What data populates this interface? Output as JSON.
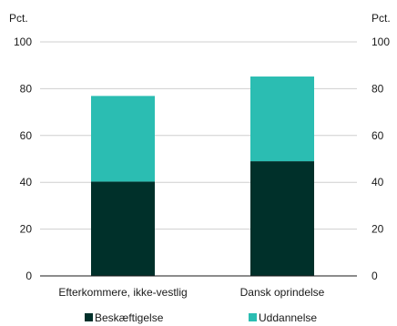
{
  "chart_data": {
    "type": "bar",
    "stacked": true,
    "categories": [
      "Efterkommere, ikke-vestlig",
      "Dansk oprindelse"
    ],
    "series": [
      {
        "name": "Beskæftigelse",
        "values": [
          40.3,
          49
        ],
        "color": "#00302a"
      },
      {
        "name": "Uddannelse",
        "values": [
          36.6,
          36.2
        ],
        "color": "#2bbdb2"
      }
    ],
    "ylim": [
      0,
      100
    ],
    "yticks": [
      0,
      20,
      40,
      60,
      80,
      100
    ],
    "ylabel_left": "Pct.",
    "ylabel_right": "Pct.",
    "grid": true,
    "gridline_color": "#cfcfcf",
    "legend_position": "bottom-center"
  }
}
